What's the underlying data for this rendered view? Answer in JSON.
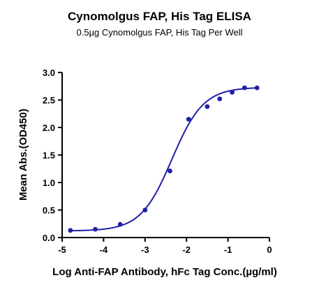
{
  "chart_data": {
    "type": "scatter",
    "title": "Cynomolgus FAP, His Tag ELISA",
    "subtitle": "0.5µg Cynomolgus FAP, His Tag Per Well",
    "xlabel": "Log Anti-FAP Antibody, hFc Tag Conc.(µg/ml)",
    "ylabel": "Mean Abs.(OD450)",
    "xlim": [
      -5,
      0
    ],
    "ylim": [
      0,
      3.0
    ],
    "xticks": [
      "-5",
      "-4",
      "-3",
      "-2",
      "-1",
      "0"
    ],
    "yticks": [
      "0.0",
      "0.5",
      "1.0",
      "1.5",
      "2.0",
      "2.5",
      "3.0"
    ],
    "grid": false,
    "series": [
      {
        "x": [
          -4.8,
          -4.2,
          -3.6,
          -3.0,
          -2.4,
          -1.95,
          -1.5,
          -1.2,
          -0.9,
          -0.6,
          -0.3
        ],
        "y": [
          0.13,
          0.15,
          0.24,
          0.5,
          1.21,
          2.15,
          2.38,
          2.52,
          2.64,
          2.72,
          2.72
        ],
        "fit": "sigmoidal",
        "color": "#1f1fa8"
      }
    ]
  }
}
